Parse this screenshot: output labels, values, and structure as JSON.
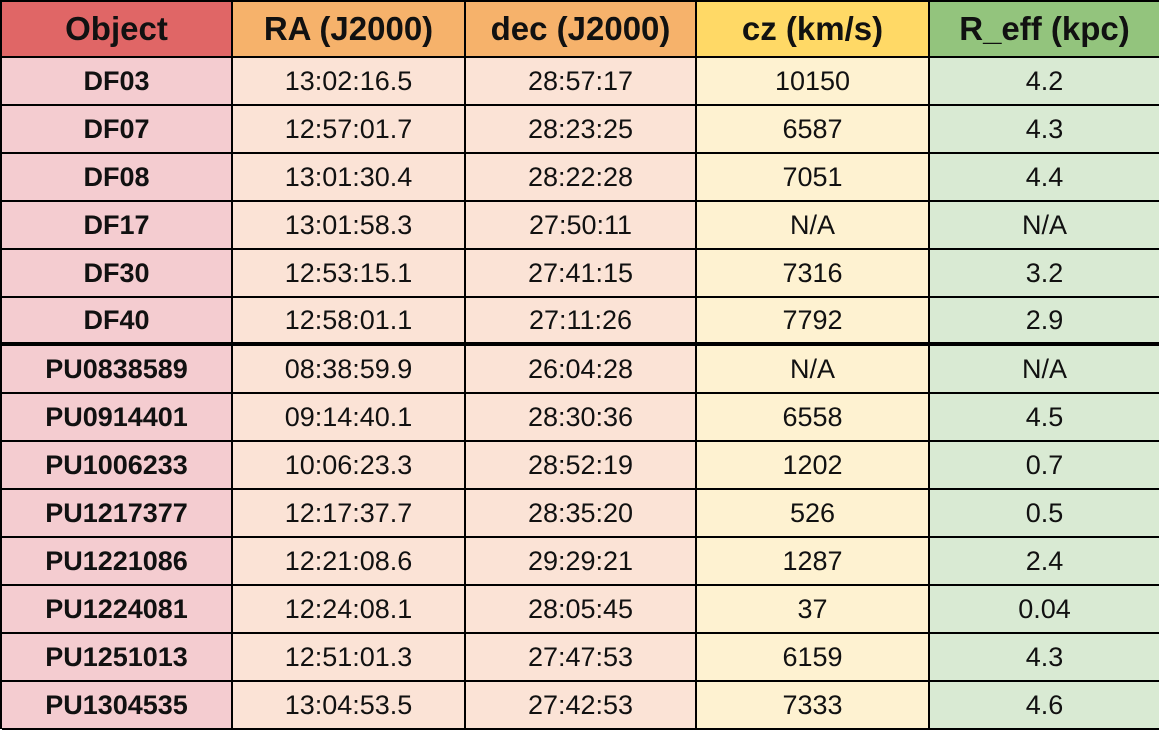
{
  "headers": [
    "Object",
    "RA (J2000)",
    "dec (J2000)",
    "cz (km/s)",
    "R_eff (kpc)"
  ],
  "rows": [
    [
      "DF03",
      "13:02:16.5",
      "28:57:17",
      "10150",
      "4.2"
    ],
    [
      "DF07",
      "12:57:01.7",
      "28:23:25",
      "6587",
      "4.3"
    ],
    [
      "DF08",
      "13:01:30.4",
      "28:22:28",
      "7051",
      "4.4"
    ],
    [
      "DF17",
      "13:01:58.3",
      "27:50:11",
      "N/A",
      "N/A"
    ],
    [
      "DF30",
      "12:53:15.1",
      "27:41:15",
      "7316",
      "3.2"
    ],
    [
      "DF40",
      "12:58:01.1",
      "27:11:26",
      "7792",
      "2.9"
    ],
    [
      "PU0838589",
      "08:38:59.9",
      "26:04:28",
      "N/A",
      "N/A"
    ],
    [
      "PU0914401",
      "09:14:40.1",
      "28:30:36",
      "6558",
      "4.5"
    ],
    [
      "PU1006233",
      "10:06:23.3",
      "28:52:19",
      "1202",
      "0.7"
    ],
    [
      "PU1217377",
      "12:17:37.7",
      "28:35:20",
      "526",
      "0.5"
    ],
    [
      "PU1221086",
      "12:21:08.6",
      "29:29:21",
      "1287",
      "2.4"
    ],
    [
      "PU1224081",
      "12:24:08.1",
      "28:05:45",
      "37",
      "0.04"
    ],
    [
      "PU1251013",
      "12:51:01.3",
      "27:47:53",
      "6159",
      "4.3"
    ],
    [
      "PU1304535",
      "13:04:53.5",
      "27:42:53",
      "7333",
      "4.6"
    ]
  ],
  "colors": {
    "header": [
      "#e06666",
      "#f6b26b",
      "#f6b26b",
      "#ffd966",
      "#93c47d"
    ],
    "body": [
      "#f4ccd0",
      "#fbe3d6",
      "#fbe3d6",
      "#fef2d1",
      "#d9ead3"
    ]
  }
}
